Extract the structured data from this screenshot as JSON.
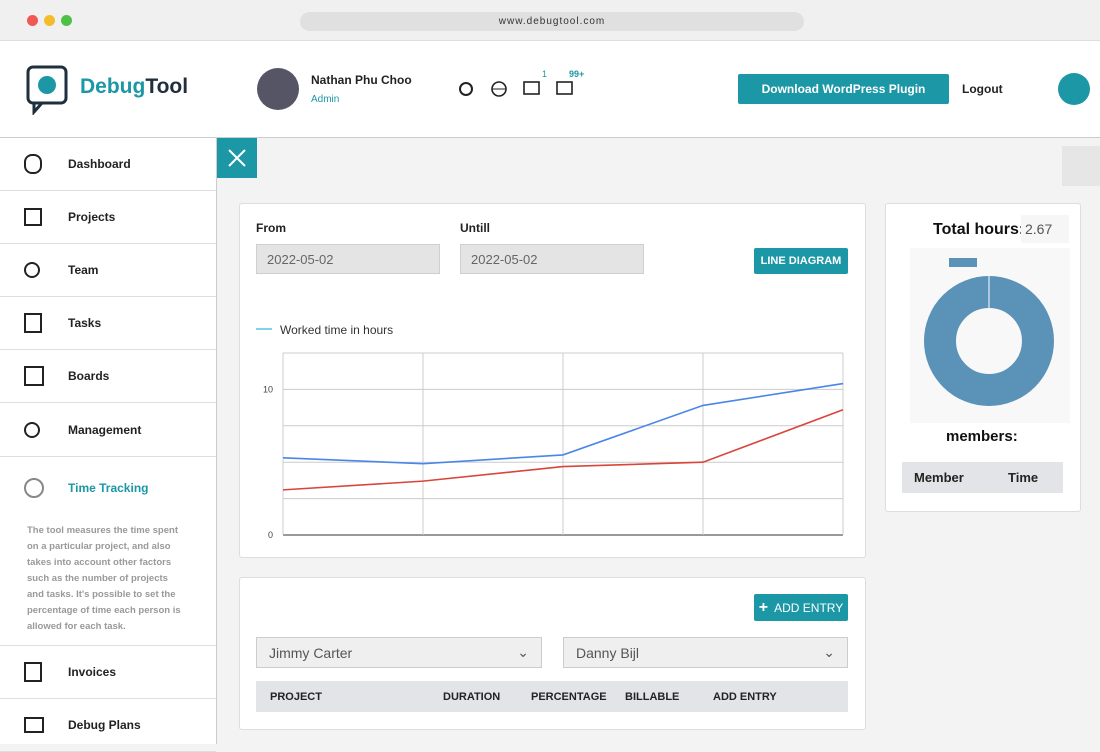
{
  "browser": {
    "url": "www.debugtool.com"
  },
  "header": {
    "logo": {
      "part1": "Debug",
      "part2": "Tool"
    },
    "user": {
      "name": "Nathan Phu Choo",
      "role": "Admin"
    },
    "badges": [
      "1",
      "99+"
    ],
    "download_button": "Download WordPress Plugin",
    "logout": "Logout"
  },
  "sidebar": {
    "items": [
      "Dashboard",
      "Projects",
      "Team",
      "Tasks",
      "Boards",
      "Management",
      "Time Tracking",
      "Invoices",
      "Debug Plans"
    ],
    "description": "The tool measures the time spent on a particular project, and also takes into account other factors such as the number of projects and tasks. It's possible to set the percentage of time each person is allowed for each task."
  },
  "filters": {
    "from_label": "From",
    "from_value": "2022-05-02",
    "until_label": "Untill",
    "until_value": "2022-05-02",
    "button": "LINE DIAGRAM"
  },
  "chart_data": {
    "type": "line",
    "categories": [
      null,
      null,
      null,
      null,
      null
    ],
    "series": [
      {
        "name": "Worked time in hours",
        "color": "#4a86e8",
        "values": [
          5.3,
          4.9,
          5.5,
          8.9,
          10.4
        ]
      },
      {
        "name": null,
        "color": "#d9453b",
        "values": [
          3.1,
          3.7,
          4.7,
          5.0,
          8.6
        ]
      }
    ],
    "ylim": [
      0,
      12.5
    ],
    "yticks": [
      0,
      {
        "value": 2.5,
        "label": null
      },
      {
        "value": 5,
        "label": null
      },
      {
        "value": 7.5,
        "label": null
      },
      10,
      {
        "value": 12.5,
        "label": null
      }
    ],
    "grid": true
  },
  "summary": {
    "total_label": "Total hours:",
    "total_value": 2.67,
    "members_label": "members:",
    "columns": [
      "Member",
      "Time"
    ]
  },
  "entries": {
    "add_button": "ADD ENTRY",
    "select1": "Jimmy Carter",
    "select2": "Danny Bijl",
    "columns": [
      "PROJECT",
      "DURATION",
      "PERCENTAGE",
      "BILLABLE",
      "ADD ENTRY"
    ]
  }
}
